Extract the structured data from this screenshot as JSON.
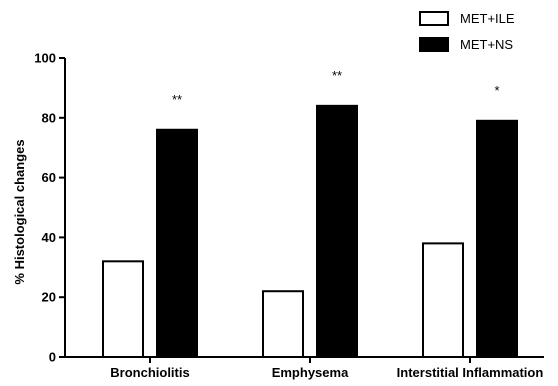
{
  "chart_data": {
    "type": "bar",
    "categories": [
      "Bronchiolitis",
      "Emphysema",
      "Interstitial Inflammation"
    ],
    "series": [
      {
        "name": "MET+ILE",
        "values": [
          32,
          22,
          38
        ],
        "fill": "#ffffff",
        "stroke": "#000000"
      },
      {
        "name": "MET+NS",
        "values": [
          76,
          84,
          79
        ],
        "fill": "#000000",
        "stroke": "#000000"
      }
    ],
    "significance": [
      "**",
      "**",
      "*"
    ],
    "ylabel": "% Histological changes",
    "xlabel": "",
    "title": "",
    "ylim": [
      0,
      100
    ],
    "yticks": [
      "0",
      "20",
      "40",
      "60",
      "80",
      "100"
    ],
    "grid": false,
    "legend_position": "top-right"
  }
}
